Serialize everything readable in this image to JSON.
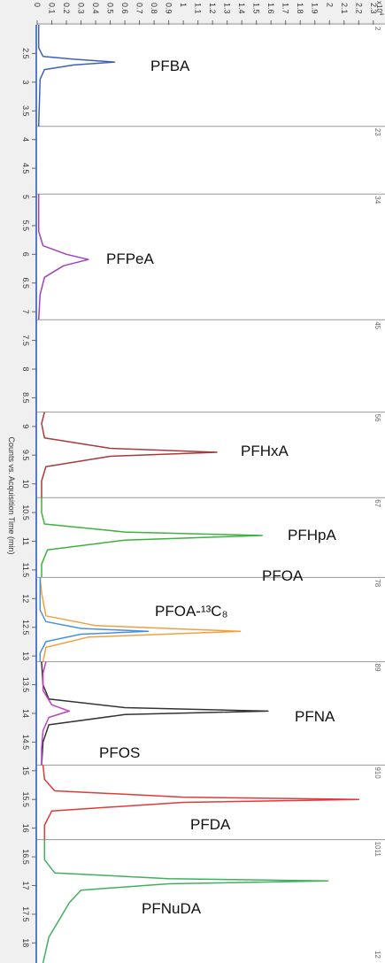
{
  "chart_data": {
    "type": "line",
    "axis_title": "Counts vs. Acquisition Time (min)",
    "scale_label": "x10",
    "scale_exponent": "4",
    "xlim": [
      2,
      18.35
    ],
    "xticks": [
      2.5,
      3,
      3.5,
      4,
      4.5,
      5,
      5.5,
      6,
      6.5,
      7,
      7.5,
      8,
      8.5,
      9,
      9.5,
      10,
      10.5,
      11,
      11.5,
      12,
      12.5,
      13,
      13.5,
      14,
      14.5,
      15,
      15.5,
      16,
      16.5,
      17,
      17.5,
      18
    ],
    "ylim": [
      0,
      2.38
    ],
    "yticks": [
      0,
      0.1,
      0.2,
      0.3,
      0.4,
      0.5,
      0.6,
      0.7,
      0.8,
      0.9,
      1,
      1.1,
      1.2,
      1.3,
      1.4,
      1.5,
      1.6,
      1.7,
      1.8,
      1.9,
      2,
      2.1,
      2.2,
      2.3
    ],
    "segment_bounds": [
      2,
      3.77,
      4.95,
      7.14,
      8.75,
      10.24,
      11.63,
      13.1,
      14.9,
      16.2,
      18.35
    ],
    "segment_labels": [
      "2",
      "23",
      "34",
      "45",
      "56",
      "67",
      "78",
      "89",
      "910",
      "1011",
      "12"
    ],
    "series": [
      {
        "name": "PFBA",
        "color": "#3f5fbf",
        "x": [
          2.0,
          2.4,
          2.55,
          2.6,
          2.65,
          2.7,
          2.78,
          2.95,
          3.77
        ],
        "values": [
          0.01,
          0.01,
          0.04,
          0.25,
          0.53,
          0.25,
          0.05,
          0.02,
          0.01
        ]
      },
      {
        "name": "PFPeA",
        "color": "#a040c0",
        "x": [
          4.95,
          5.6,
          5.85,
          6.0,
          6.09,
          6.2,
          6.4,
          6.7,
          7.14
        ],
        "values": [
          0.01,
          0.01,
          0.04,
          0.2,
          0.35,
          0.18,
          0.05,
          0.02,
          0.01
        ]
      },
      {
        "name": "PFHxA",
        "color": "#a83a3a",
        "x": [
          8.75,
          8.95,
          9.2,
          9.38,
          9.45,
          9.52,
          9.7,
          9.95,
          10.24
        ],
        "values": [
          0.05,
          0.03,
          0.05,
          0.5,
          1.23,
          0.5,
          0.06,
          0.03,
          0.03
        ]
      },
      {
        "name": "PFHpA",
        "color": "#40b040",
        "x": [
          10.24,
          10.5,
          10.7,
          10.84,
          10.9,
          10.98,
          11.15,
          11.4,
          11.63
        ],
        "values": [
          0.03,
          0.03,
          0.05,
          0.6,
          1.54,
          0.6,
          0.07,
          0.03,
          0.03
        ]
      },
      {
        "name": "PFOA",
        "color": "#f0a040",
        "x": [
          11.63,
          11.9,
          11.9,
          12.3,
          12.47,
          12.57,
          12.67,
          12.85,
          13.1
        ],
        "values": [
          0.02,
          0.03,
          0.03,
          0.06,
          0.4,
          1.39,
          0.35,
          0.06,
          0.04
        ]
      },
      {
        "name": "PFOA-¹³C₈",
        "color": "#4a90e0",
        "x": [
          11.63,
          12.2,
          12.4,
          12.52,
          12.57,
          12.62,
          12.75,
          12.95,
          13.1
        ],
        "values": [
          0.02,
          0.02,
          0.06,
          0.3,
          0.76,
          0.3,
          0.06,
          0.02,
          0.02
        ]
      },
      {
        "name": "PFNA",
        "color": "#333333",
        "x": [
          13.1,
          13.5,
          13.75,
          13.9,
          13.96,
          14.02,
          14.2,
          14.5,
          14.9
        ],
        "values": [
          0.03,
          0.04,
          0.08,
          0.6,
          1.58,
          0.6,
          0.08,
          0.04,
          0.03
        ]
      },
      {
        "name": "PFOS",
        "color": "#c040c0",
        "x": [
          13.1,
          13.3,
          13.6,
          13.85,
          13.96,
          14.07,
          14.3,
          14.6,
          14.9
        ],
        "values": [
          0.06,
          0.04,
          0.04,
          0.1,
          0.22,
          0.08,
          0.04,
          0.03,
          0.03
        ]
      },
      {
        "name": "PFDA",
        "color": "#e03a3a",
        "x": [
          14.9,
          15.15,
          15.35,
          15.46,
          15.5,
          15.55,
          15.7,
          15.95,
          16.2
        ],
        "values": [
          0.04,
          0.05,
          0.12,
          1.0,
          2.2,
          1.0,
          0.1,
          0.05,
          0.05
        ]
      },
      {
        "name": "PFNuDA",
        "color": "#40b060",
        "x": [
          16.2,
          16.55,
          16.78,
          16.88,
          16.92,
          16.97,
          17.08,
          17.3,
          17.6,
          17.9,
          18.35
        ],
        "values": [
          0.05,
          0.05,
          0.12,
          0.9,
          1.99,
          0.9,
          0.3,
          0.22,
          0.15,
          0.08,
          0.04
        ]
      }
    ]
  }
}
